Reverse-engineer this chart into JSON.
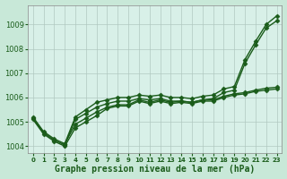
{
  "bg_color": "#c8e8d8",
  "plot_bg_color": "#d8f0e8",
  "grid_color": "#b0c8c0",
  "line_color": "#1a5c1a",
  "title": "Graphe pression niveau de la mer (hPa)",
  "title_fontsize": 7,
  "xlim": [
    -0.5,
    23.5
  ],
  "ylim": [
    1003.7,
    1009.8
  ],
  "yticks": [
    1004,
    1005,
    1006,
    1007,
    1008,
    1009
  ],
  "xticks": [
    0,
    1,
    2,
    3,
    4,
    5,
    6,
    7,
    8,
    9,
    10,
    11,
    12,
    13,
    14,
    15,
    16,
    17,
    18,
    19,
    20,
    21,
    22,
    23
  ],
  "series": [
    {
      "x": [
        0,
        1,
        2,
        3,
        4,
        5,
        6,
        7,
        8,
        9,
        10,
        11,
        12,
        13,
        14,
        15,
        16,
        17,
        18,
        19,
        20,
        21,
        22,
        23
      ],
      "y": [
        1005.2,
        1004.6,
        1004.3,
        1004.1,
        1005.2,
        1005.5,
        1005.8,
        1005.9,
        1006.0,
        1006.0,
        1006.1,
        1006.05,
        1006.1,
        1006.0,
        1006.0,
        1005.95,
        1006.05,
        1006.1,
        1006.35,
        1006.45,
        1007.55,
        1008.3,
        1009.0,
        1009.35
      ],
      "marker": "D",
      "markersize": 2.5,
      "linewidth": 1.0
    },
    {
      "x": [
        0,
        1,
        2,
        3,
        4,
        5,
        6,
        7,
        8,
        9,
        10,
        11,
        12,
        13,
        14,
        15,
        16,
        17,
        18,
        19,
        20,
        21,
        22,
        23
      ],
      "y": [
        1005.15,
        1004.55,
        1004.25,
        1004.05,
        1005.1,
        1005.35,
        1005.6,
        1005.75,
        1005.85,
        1005.85,
        1005.95,
        1005.9,
        1005.95,
        1005.85,
        1005.85,
        1005.8,
        1005.9,
        1005.95,
        1006.2,
        1006.3,
        1007.4,
        1008.15,
        1008.85,
        1009.15
      ],
      "marker": "D",
      "markersize": 2.5,
      "linewidth": 1.0
    },
    {
      "x": [
        0,
        1,
        2,
        3,
        4,
        5,
        6,
        7,
        8,
        9,
        10,
        11,
        12,
        13,
        14,
        15,
        16,
        17,
        18,
        19,
        20,
        21,
        22,
        23
      ],
      "y": [
        1005.1,
        1004.5,
        1004.2,
        1004.0,
        1004.75,
        1005.0,
        1005.25,
        1005.55,
        1005.65,
        1005.65,
        1005.85,
        1005.75,
        1005.85,
        1005.75,
        1005.8,
        1005.75,
        1005.85,
        1005.85,
        1006.0,
        1006.1,
        1006.15,
        1006.25,
        1006.3,
        1006.35
      ],
      "marker": "D",
      "markersize": 2.5,
      "linewidth": 1.0
    },
    {
      "x": [
        3,
        4,
        5,
        6,
        7,
        8,
        9,
        10,
        11,
        12,
        13,
        14,
        15,
        16,
        17,
        18,
        19,
        20,
        21,
        22,
        23
      ],
      "y": [
        1004.1,
        1004.9,
        1005.15,
        1005.4,
        1005.6,
        1005.7,
        1005.7,
        1005.9,
        1005.8,
        1005.9,
        1005.8,
        1005.85,
        1005.8,
        1005.9,
        1005.9,
        1006.05,
        1006.15,
        1006.2,
        1006.3,
        1006.38,
        1006.42
      ],
      "marker": "D",
      "markersize": 2.5,
      "linewidth": 1.0
    }
  ]
}
